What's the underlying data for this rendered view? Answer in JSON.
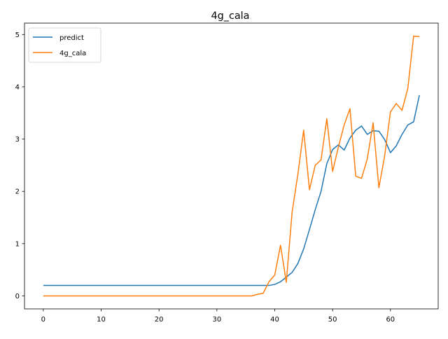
{
  "chart_data": {
    "type": "line",
    "title": "4g_cala",
    "xlabel": "",
    "ylabel": "",
    "xlim": [
      -3.25,
      68.25
    ],
    "ylim": [
      -0.248,
      5.218
    ],
    "xticks": [
      0,
      10,
      20,
      30,
      40,
      50,
      60
    ],
    "yticks": [
      0,
      1,
      2,
      3,
      4,
      5
    ],
    "grid": false,
    "legend_position": "top-left",
    "series": [
      {
        "name": "predict",
        "color": "#1f77b4",
        "x": [
          0,
          1,
          2,
          3,
          4,
          5,
          6,
          7,
          8,
          9,
          10,
          11,
          12,
          13,
          14,
          15,
          16,
          17,
          18,
          19,
          20,
          21,
          22,
          23,
          24,
          25,
          26,
          27,
          28,
          29,
          30,
          31,
          32,
          33,
          34,
          35,
          36,
          37,
          38,
          39,
          40,
          41,
          42,
          43,
          44,
          45,
          46,
          47,
          48,
          49,
          50,
          51,
          52,
          53,
          54,
          55,
          56,
          57,
          58,
          59,
          60,
          61,
          62,
          63,
          64,
          65
        ],
        "y": [
          0.2,
          0.2,
          0.2,
          0.2,
          0.2,
          0.2,
          0.2,
          0.2,
          0.2,
          0.2,
          0.2,
          0.2,
          0.2,
          0.2,
          0.2,
          0.2,
          0.2,
          0.2,
          0.2,
          0.2,
          0.2,
          0.2,
          0.2,
          0.2,
          0.2,
          0.2,
          0.2,
          0.2,
          0.2,
          0.2,
          0.2,
          0.2,
          0.2,
          0.2,
          0.2,
          0.2,
          0.2,
          0.2,
          0.2,
          0.2,
          0.22,
          0.27,
          0.36,
          0.45,
          0.62,
          0.9,
          1.27,
          1.65,
          2.0,
          2.53,
          2.8,
          2.89,
          2.79,
          3.02,
          3.17,
          3.25,
          3.09,
          3.16,
          3.15,
          2.99,
          2.74,
          2.87,
          3.09,
          3.27,
          3.33,
          3.84
        ]
      },
      {
        "name": "4g_cala",
        "color": "#ff7f0e",
        "x": [
          0,
          1,
          2,
          3,
          4,
          5,
          6,
          7,
          8,
          9,
          10,
          11,
          12,
          13,
          14,
          15,
          16,
          17,
          18,
          19,
          20,
          21,
          22,
          23,
          24,
          25,
          26,
          27,
          28,
          29,
          30,
          31,
          32,
          33,
          34,
          35,
          36,
          37,
          38,
          39,
          40,
          41,
          42,
          43,
          44,
          45,
          46,
          47,
          48,
          49,
          50,
          51,
          52,
          53,
          54,
          55,
          56,
          57,
          58,
          59,
          60,
          61,
          62,
          63,
          64,
          65
        ],
        "y": [
          0,
          0,
          0,
          0,
          0,
          0,
          0,
          0,
          0,
          0,
          0,
          0,
          0,
          0,
          0,
          0,
          0,
          0,
          0,
          0,
          0,
          0,
          0,
          0,
          0,
          0,
          0,
          0,
          0,
          0,
          0,
          0,
          0,
          0,
          0,
          0,
          0,
          0.03,
          0.05,
          0.27,
          0.4,
          0.97,
          0.26,
          1.6,
          2.33,
          3.17,
          2.03,
          2.5,
          2.6,
          3.39,
          2.38,
          2.85,
          3.27,
          3.58,
          2.29,
          2.25,
          2.62,
          3.31,
          2.07,
          2.68,
          3.52,
          3.68,
          3.55,
          3.97,
          4.97,
          4.96
        ]
      }
    ]
  }
}
